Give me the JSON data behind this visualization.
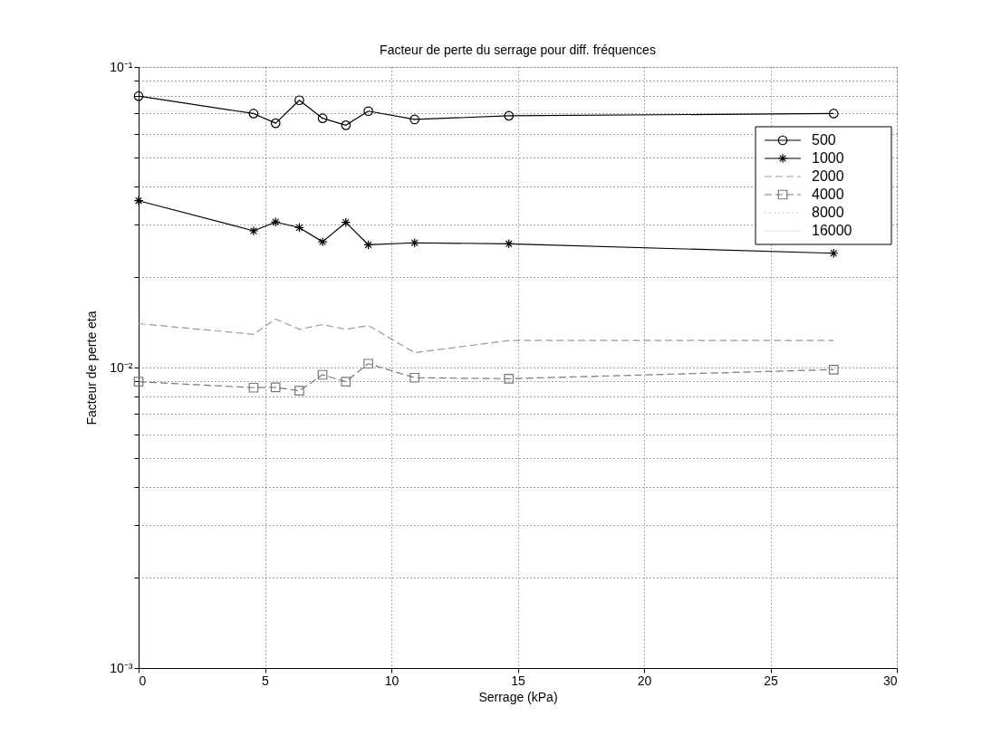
{
  "chart_data": {
    "type": "line",
    "title": "Facteur de perte du serrage  pour diff. fréquences",
    "xlabel": "Serrage (kPa)",
    "ylabel": "Facteur de perte eta",
    "log": "y",
    "grid": true,
    "legend": "top right",
    "xlim": [
      0,
      30
    ],
    "xticks": [
      0,
      5,
      10,
      15,
      20,
      25,
      30
    ],
    "ylim": [
      0.001,
      0.1
    ],
    "yticks": [
      {
        "value": 0.001,
        "label": "10⁻³"
      },
      {
        "value": 0.002,
        "label": null
      },
      {
        "value": 0.003,
        "label": null
      },
      {
        "value": 0.004,
        "label": null
      },
      {
        "value": 0.005,
        "label": null
      },
      {
        "value": 0.006,
        "label": null
      },
      {
        "value": 0.007,
        "label": null
      },
      {
        "value": 0.008,
        "label": null
      },
      {
        "value": 0.009,
        "label": null
      },
      {
        "value": 0.01,
        "label": "10⁻²"
      },
      {
        "value": 0.02,
        "label": null
      },
      {
        "value": 0.03,
        "label": null
      },
      {
        "value": 0.04,
        "label": null
      },
      {
        "value": 0.05,
        "label": null
      },
      {
        "value": 0.06,
        "label": null
      },
      {
        "value": 0.07,
        "label": null
      },
      {
        "value": 0.08,
        "label": null
      },
      {
        "value": 0.09,
        "label": null
      },
      {
        "value": 0.1,
        "label": "10⁻¹"
      }
    ],
    "x": [
      0,
      4.55,
      5.42,
      6.36,
      7.28,
      8.2,
      9.09,
      10.92,
      14.65,
      27.5
    ],
    "series": [
      {
        "name": "500",
        "color": "#000000",
        "marker": "circle",
        "line_style": "solid",
        "values": [
          0.08,
          0.07,
          0.065,
          0.0775,
          0.0675,
          0.064,
          0.0713,
          0.0669,
          0.0688,
          0.07
        ]
      },
      {
        "name": "1000",
        "color": "#000000",
        "marker": "cross",
        "line_style": "solid",
        "values": [
          0.0359,
          0.0285,
          0.0305,
          0.0292,
          0.0262,
          0.0304,
          0.0256,
          0.026,
          0.0258,
          0.024
        ]
      },
      {
        "name": "2000",
        "color": "#999999",
        "marker": "none",
        "line_style": "dashed",
        "values": [
          0.014,
          0.0129,
          0.0145,
          0.0134,
          0.0139,
          0.0134,
          0.0138,
          0.0112,
          0.0123,
          0.0123
        ]
      },
      {
        "name": "4000",
        "color": "#777777",
        "marker": "square",
        "line_style": "dashed",
        "values": [
          0.00897,
          0.00857,
          0.00859,
          0.00837,
          0.00946,
          0.00897,
          0.0103,
          0.00925,
          0.00918,
          0.00984
        ]
      },
      {
        "name": "8000",
        "color": "#cccccc",
        "marker": "none",
        "line_style": "dotted",
        "values": [
          null,
          null,
          null,
          null,
          null,
          null,
          null,
          null,
          null,
          null
        ]
      },
      {
        "name": "16000",
        "color": "#dddddd",
        "marker": "none",
        "line_style": "solid",
        "values": [
          null,
          null,
          null,
          null,
          null,
          null,
          null,
          null,
          null,
          null
        ]
      }
    ]
  }
}
